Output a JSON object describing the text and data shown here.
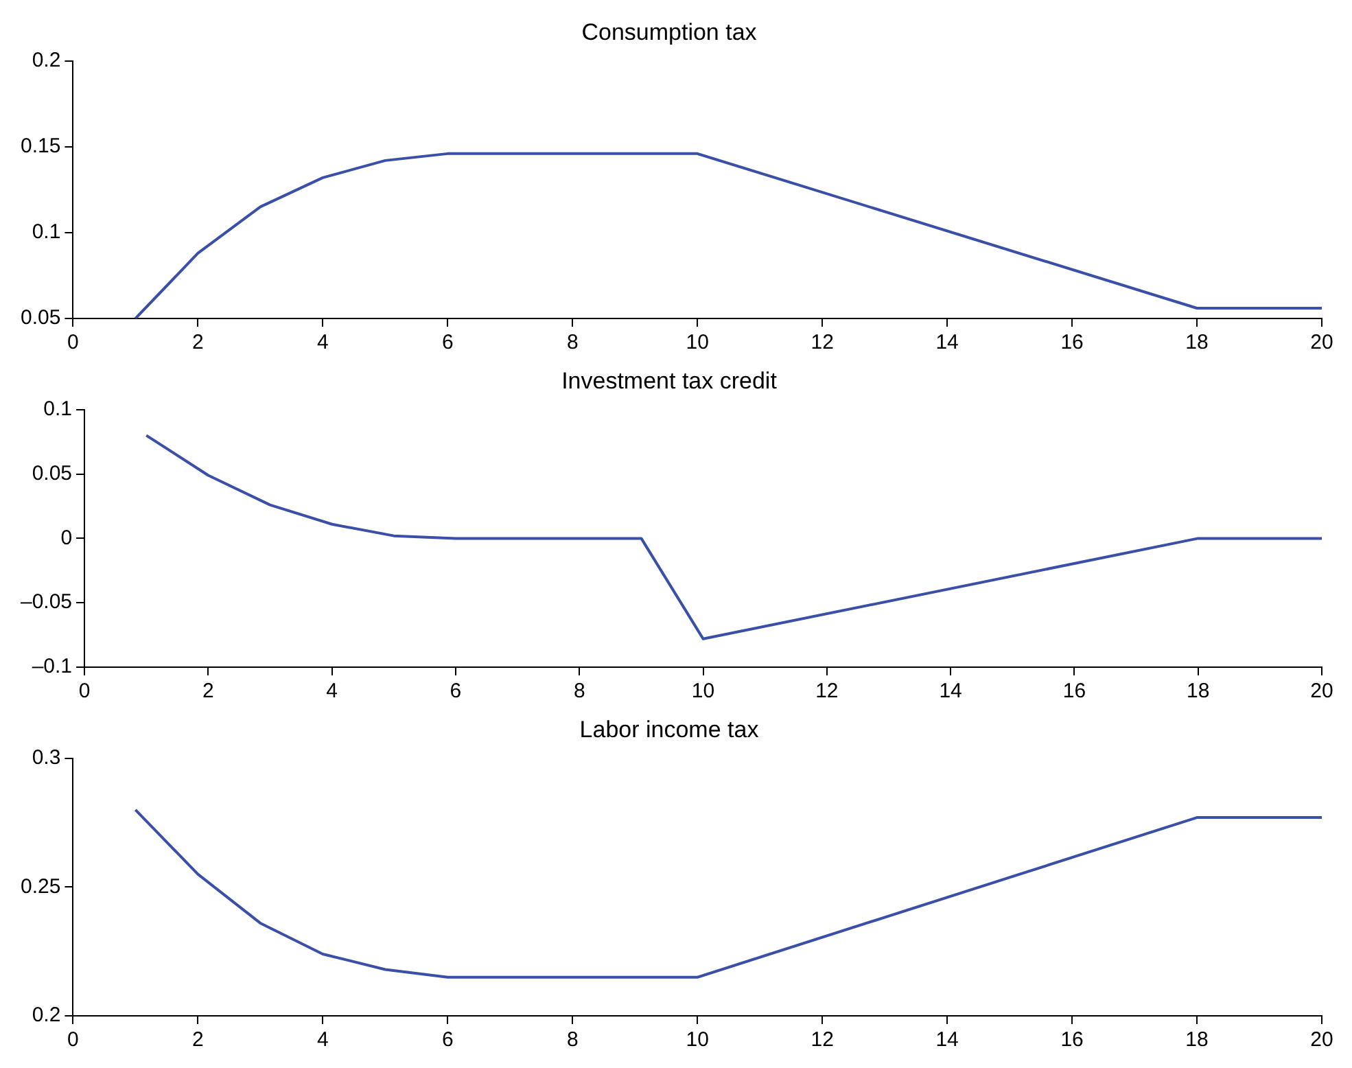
{
  "chart_data": [
    {
      "type": "line",
      "title": "Consumption tax",
      "xlim": [
        0,
        20
      ],
      "xticks": [
        0,
        2,
        4,
        6,
        8,
        10,
        12,
        14,
        16,
        18,
        20
      ],
      "ylim": [
        0.05,
        0.2
      ],
      "yticks": [
        0.05,
        0.1,
        0.15,
        0.2
      ],
      "marker": "none",
      "series": [
        {
          "color": "#3a4fa8",
          "x": [
            1,
            2,
            3,
            4,
            5,
            6,
            10,
            18,
            20
          ],
          "values": [
            0.05,
            0.088,
            0.115,
            0.132,
            0.142,
            0.146,
            0.146,
            0.056,
            0.056
          ]
        }
      ]
    },
    {
      "type": "line",
      "title": "Investment tax credit",
      "xlim": [
        0,
        20
      ],
      "xticks": [
        0,
        2,
        4,
        6,
        8,
        10,
        12,
        14,
        16,
        18,
        20
      ],
      "ylim": [
        -0.1,
        0.1
      ],
      "yticks": [
        {
          "value": -0.1,
          "label": "–0.1"
        },
        {
          "value": -0.05,
          "label": "–0.05"
        },
        0,
        0.05,
        0.1
      ],
      "marker": "none",
      "series": [
        {
          "color": "#3a4fa8",
          "x": [
            1,
            2,
            3,
            4,
            5,
            6,
            9,
            10,
            18,
            20
          ],
          "values": [
            0.08,
            0.049,
            0.026,
            0.011,
            0.002,
            0,
            0,
            -0.078,
            0,
            0
          ]
        }
      ]
    },
    {
      "type": "line",
      "title": "Labor income tax",
      "xlim": [
        0,
        20
      ],
      "xticks": [
        0,
        2,
        4,
        6,
        8,
        10,
        12,
        14,
        16,
        18,
        20
      ],
      "ylim": [
        0.2,
        0.3
      ],
      "yticks": [
        0.2,
        0.25,
        0.3
      ],
      "marker": "none",
      "series": [
        {
          "color": "#3a4fa8",
          "x": [
            1,
            2,
            3,
            4,
            5,
            6,
            10,
            18,
            20
          ],
          "values": [
            0.28,
            0.255,
            0.236,
            0.224,
            0.218,
            0.215,
            0.215,
            0.277,
            0.277
          ]
        }
      ]
    }
  ]
}
